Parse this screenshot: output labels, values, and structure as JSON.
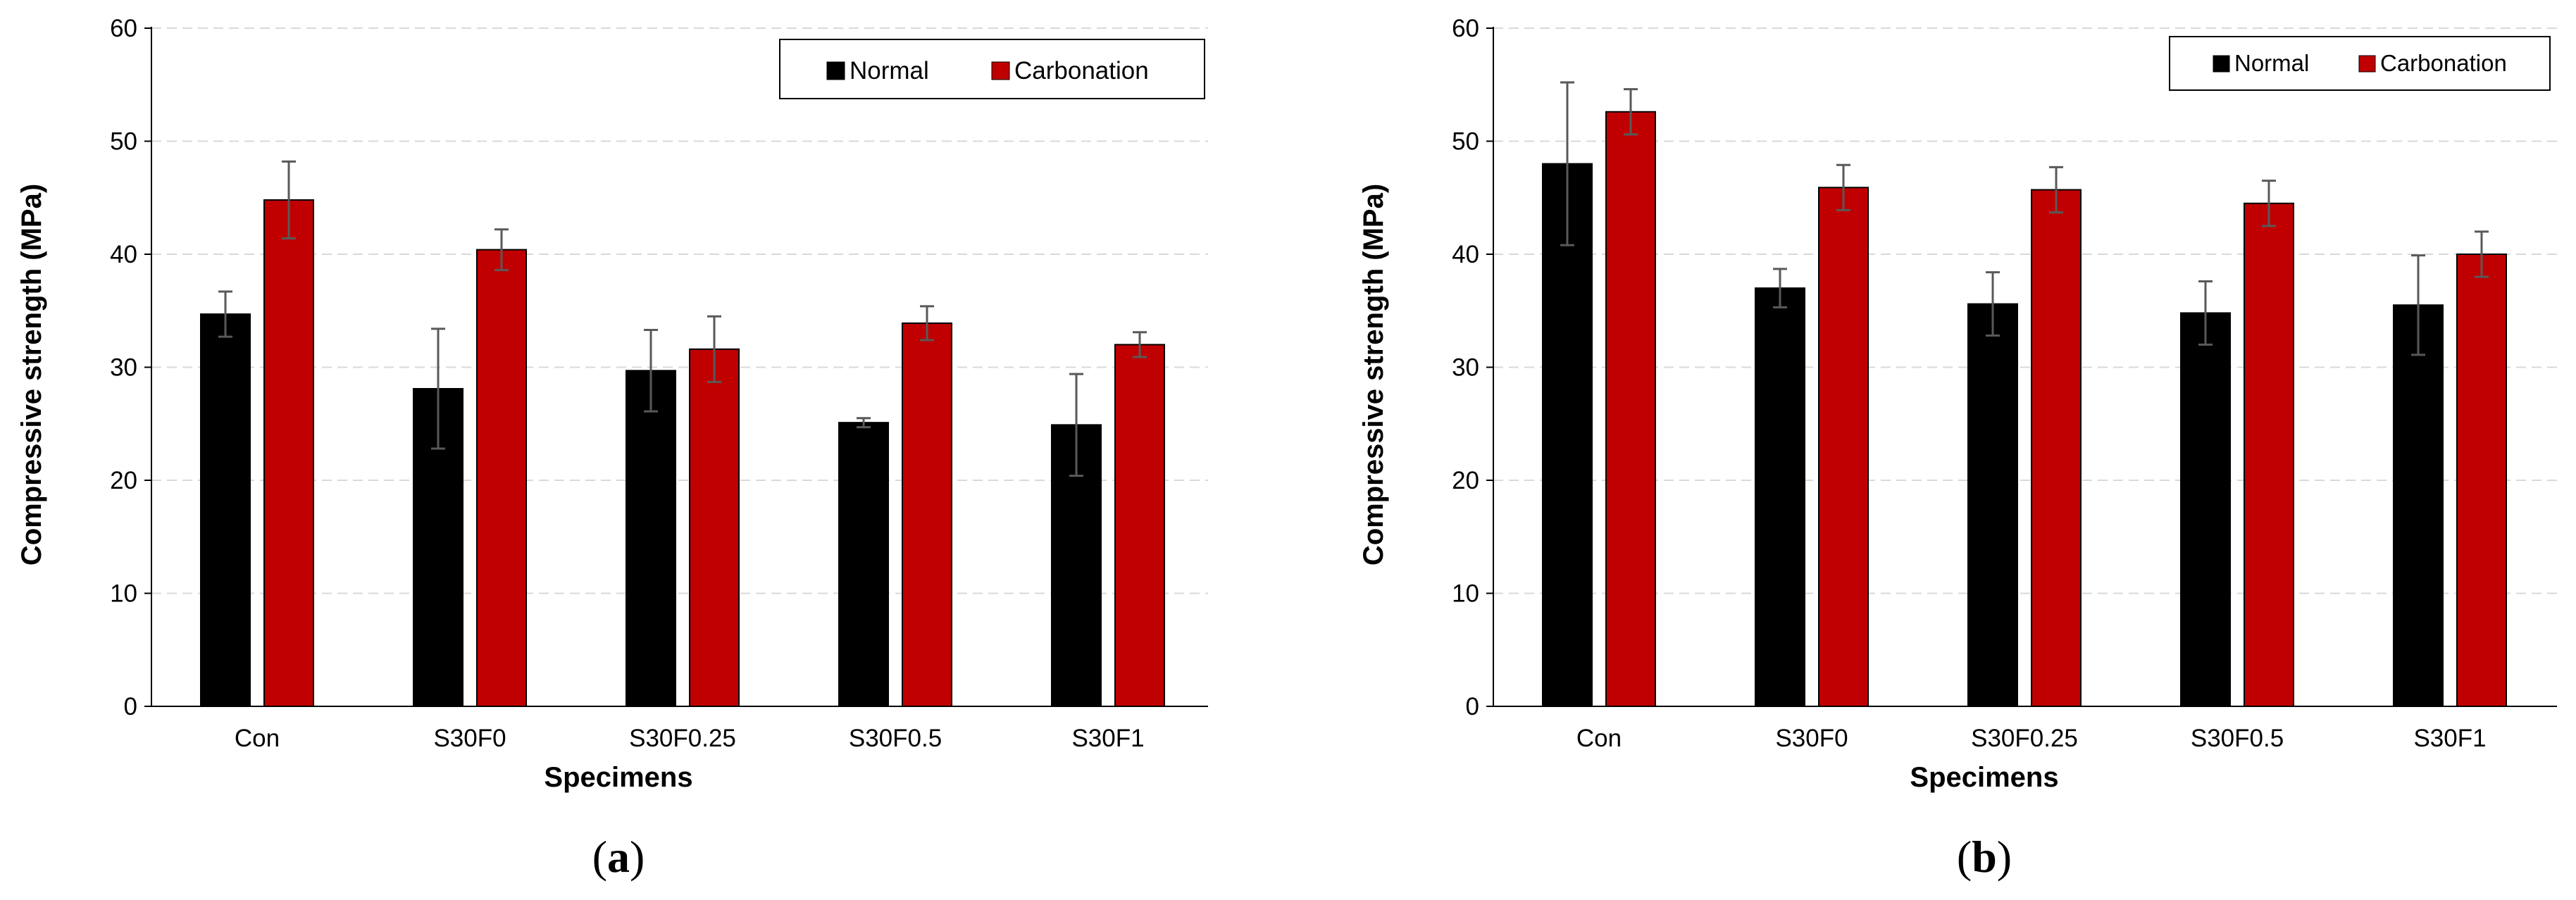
{
  "colors": {
    "normal": "#000000",
    "carbonation": "#c00000",
    "grid": "#d9d9d9",
    "error_bar": "#595959"
  },
  "chart_data": [
    {
      "type": "bar",
      "caption": "(a)",
      "caption_open": "(",
      "caption_letter": "a",
      "caption_close": ")",
      "xlabel": "Specimens",
      "ylabel": "Compressive strength (MPa)",
      "ylim": [
        0,
        60
      ],
      "yticks": [
        0,
        10,
        20,
        30,
        40,
        50,
        60
      ],
      "grid": true,
      "legend_position": "top-right",
      "categories": [
        "Con",
        "S30F0",
        "S30F0.25",
        "S30F0.5",
        "S30F1"
      ],
      "series": [
        {
          "name": "Normal",
          "values": [
            34.7,
            28.1,
            29.7,
            25.1,
            24.9
          ],
          "errors": [
            2.0,
            5.3,
            3.6,
            0.4,
            4.5
          ]
        },
        {
          "name": "Carbonation",
          "values": [
            44.8,
            40.4,
            31.6,
            33.9,
            32.0
          ],
          "errors": [
            3.4,
            1.8,
            2.9,
            1.5,
            1.1
          ]
        }
      ]
    },
    {
      "type": "bar",
      "caption": "(b)",
      "caption_open": "(",
      "caption_letter": "b",
      "caption_close": ")",
      "xlabel": "Specimens",
      "ylabel": "Compressive strength (MPa)",
      "ylim": [
        0,
        60
      ],
      "yticks": [
        0,
        10,
        20,
        30,
        40,
        50,
        60
      ],
      "grid": true,
      "legend_position": "top-right",
      "categories": [
        "Con",
        "S30F0",
        "S30F0.25",
        "S30F0.5",
        "S30F1"
      ],
      "series": [
        {
          "name": "Normal",
          "values": [
            48.0,
            37.0,
            35.6,
            34.8,
            35.5
          ],
          "errors": [
            7.2,
            1.7,
            2.8,
            2.8,
            4.4
          ]
        },
        {
          "name": "Carbonation",
          "values": [
            52.6,
            45.9,
            45.7,
            44.5,
            40.0
          ],
          "errors": [
            2.0,
            2.0,
            2.0,
            2.0,
            2.0
          ]
        }
      ]
    }
  ]
}
